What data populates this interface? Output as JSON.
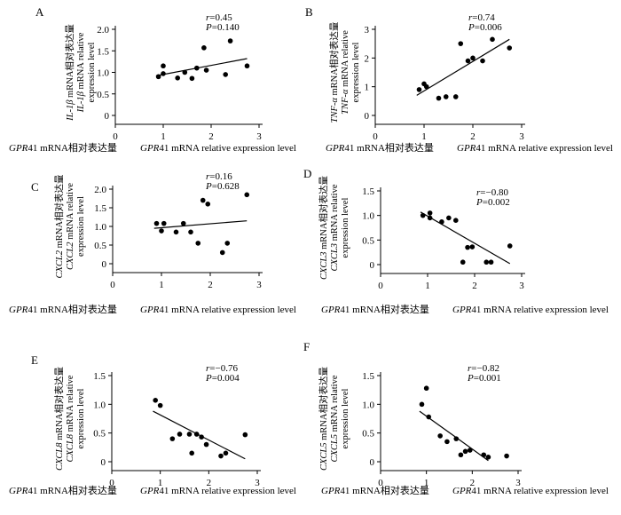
{
  "chart_data": [
    {
      "panel": "A",
      "type": "scatter",
      "ylabel": [
        "IL-1β mRNA相对表达量",
        "IL-1β mRNA relative",
        "expression level"
      ],
      "xlabel": [
        "GPR41 mRNA相对表达量",
        "GPR41 mRNA relative expression level"
      ],
      "r_label": "r=0.45",
      "p_label": "P=0.140",
      "xlim": [
        0,
        3
      ],
      "ylim": [
        0,
        2.0
      ],
      "xticks": [
        "0",
        "1",
        "2",
        "3"
      ],
      "yticks": [
        "0",
        "0.5",
        "1.0",
        "1.5",
        "2.0"
      ],
      "points": [
        {
          "x": 0.9,
          "y": 0.9
        },
        {
          "x": 1.0,
          "y": 1.15
        },
        {
          "x": 1.0,
          "y": 0.97
        },
        {
          "x": 1.3,
          "y": 0.87
        },
        {
          "x": 1.45,
          "y": 1.0
        },
        {
          "x": 1.6,
          "y": 0.86
        },
        {
          "x": 1.7,
          "y": 1.1
        },
        {
          "x": 1.85,
          "y": 1.57
        },
        {
          "x": 1.9,
          "y": 1.05
        },
        {
          "x": 2.3,
          "y": 0.95
        },
        {
          "x": 2.4,
          "y": 1.73
        },
        {
          "x": 2.75,
          "y": 1.15
        }
      ],
      "fit": [
        [
          0.85,
          0.92
        ],
        [
          2.75,
          1.32
        ]
      ]
    },
    {
      "panel": "B",
      "type": "scatter",
      "ylabel": [
        "TNF-α mRNA相对表达量",
        "TNF-α mRNA relative",
        "expression level"
      ],
      "xlabel": [
        "GPR41 mRNA相对表达量",
        "GPR41 mRNA relative expression level"
      ],
      "r_label": "r=0.74",
      "p_label": "P=0.006",
      "xlim": [
        0,
        3
      ],
      "ylim": [
        0,
        3
      ],
      "xticks": [
        "0",
        "1",
        "2",
        "3"
      ],
      "yticks": [
        "0",
        "1",
        "2",
        "3"
      ],
      "points": [
        {
          "x": 0.9,
          "y": 0.9
        },
        {
          "x": 1.0,
          "y": 1.1
        },
        {
          "x": 1.05,
          "y": 1.0
        },
        {
          "x": 1.3,
          "y": 0.6
        },
        {
          "x": 1.45,
          "y": 0.65
        },
        {
          "x": 1.65,
          "y": 0.65
        },
        {
          "x": 1.75,
          "y": 2.5
        },
        {
          "x": 1.9,
          "y": 1.9
        },
        {
          "x": 2.0,
          "y": 2.0
        },
        {
          "x": 2.2,
          "y": 1.9
        },
        {
          "x": 2.4,
          "y": 2.65
        },
        {
          "x": 2.75,
          "y": 2.35
        }
      ],
      "fit": [
        [
          0.85,
          0.7
        ],
        [
          2.75,
          2.65
        ]
      ]
    },
    {
      "panel": "C",
      "type": "scatter",
      "ylabel": [
        "CXCL2 mRNA相对表达量",
        "CXCL2 mRNA relative",
        "expression level"
      ],
      "xlabel": [
        "GPR41 mRNA相对表达量",
        "GPR41 mRNA relative expression level"
      ],
      "r_label": "r=0.16",
      "p_label": "P=0.628",
      "xlim": [
        0,
        3
      ],
      "ylim": [
        0,
        2.0
      ],
      "xticks": [
        "0",
        "1",
        "2",
        "3"
      ],
      "yticks": [
        "0",
        "0.5",
        "1.0",
        "1.5",
        "2.0"
      ],
      "points": [
        {
          "x": 0.9,
          "y": 1.08
        },
        {
          "x": 1.0,
          "y": 0.88
        },
        {
          "x": 1.05,
          "y": 1.08
        },
        {
          "x": 1.3,
          "y": 0.85
        },
        {
          "x": 1.45,
          "y": 1.08
        },
        {
          "x": 1.6,
          "y": 0.85
        },
        {
          "x": 1.75,
          "y": 0.55
        },
        {
          "x": 1.85,
          "y": 1.7
        },
        {
          "x": 1.95,
          "y": 1.6
        },
        {
          "x": 2.25,
          "y": 0.3
        },
        {
          "x": 2.35,
          "y": 0.55
        },
        {
          "x": 2.75,
          "y": 1.85
        }
      ],
      "fit": [
        [
          0.85,
          0.95
        ],
        [
          2.75,
          1.15
        ]
      ]
    },
    {
      "panel": "D",
      "type": "scatter",
      "ylabel": [
        "CXCL3 mRNA相对表达量",
        "CXCL3 mRNA relative",
        "expression level"
      ],
      "xlabel": [
        "GPR41 mRNA相对表达量",
        "GPR41 mRNA relative expression level"
      ],
      "r_label": "r=−0.80",
      "p_label": "P=0.002",
      "xlim": [
        0,
        3
      ],
      "ylim": [
        0,
        1.5
      ],
      "xticks": [
        "0",
        "1",
        "2",
        "3"
      ],
      "yticks": [
        "0",
        "0.5",
        "1.0",
        "1.5"
      ],
      "points": [
        {
          "x": 0.9,
          "y": 1.0
        },
        {
          "x": 1.05,
          "y": 1.05
        },
        {
          "x": 1.05,
          "y": 0.95
        },
        {
          "x": 1.3,
          "y": 0.87
        },
        {
          "x": 1.45,
          "y": 0.95
        },
        {
          "x": 1.6,
          "y": 0.9
        },
        {
          "x": 1.75,
          "y": 0.05
        },
        {
          "x": 1.85,
          "y": 0.35
        },
        {
          "x": 1.95,
          "y": 0.36
        },
        {
          "x": 2.25,
          "y": 0.05
        },
        {
          "x": 2.35,
          "y": 0.05
        },
        {
          "x": 2.75,
          "y": 0.38
        }
      ],
      "fit": [
        [
          0.85,
          1.07
        ],
        [
          2.75,
          0.02
        ]
      ]
    },
    {
      "panel": "E",
      "type": "scatter",
      "ylabel": [
        "CXCL8 mRNA相对表达量",
        "CXCL8 mRNA relative",
        "expression level"
      ],
      "xlabel": [
        "GPR41 mRNA相对表达量",
        "GPR41 mRNA relative expression level"
      ],
      "r_label": "r=−0.76",
      "p_label": "P=0.004",
      "xlim": [
        0,
        3
      ],
      "ylim": [
        0,
        1.5
      ],
      "xticks": [
        "0",
        "1",
        "2",
        "3"
      ],
      "yticks": [
        "0",
        "0.5",
        "1.0",
        "1.5"
      ],
      "points": [
        {
          "x": 0.9,
          "y": 1.07
        },
        {
          "x": 1.0,
          "y": 0.98
        },
        {
          "x": 1.25,
          "y": 0.4
        },
        {
          "x": 1.4,
          "y": 0.48
        },
        {
          "x": 1.6,
          "y": 0.48
        },
        {
          "x": 1.65,
          "y": 0.15
        },
        {
          "x": 1.75,
          "y": 0.48
        },
        {
          "x": 1.85,
          "y": 0.43
        },
        {
          "x": 1.95,
          "y": 0.3
        },
        {
          "x": 2.25,
          "y": 0.1
        },
        {
          "x": 2.35,
          "y": 0.15
        },
        {
          "x": 2.75,
          "y": 0.47
        }
      ],
      "fit": [
        [
          0.85,
          0.88
        ],
        [
          2.75,
          0.05
        ]
      ]
    },
    {
      "panel": "F",
      "type": "scatter",
      "ylabel": [
        "CXCL5 mRNA相对表达量",
        "CXCL5 mRNA relative",
        "expression level"
      ],
      "xlabel": [
        "GPR41 mRNA相对表达量",
        "GPR41 mRNA relative expression level"
      ],
      "r_label": "r=−0.82",
      "p_label": "P=0.001",
      "xlim": [
        0,
        3
      ],
      "ylim": [
        0,
        1.5
      ],
      "xticks": [
        "0",
        "1",
        "2",
        "3"
      ],
      "yticks": [
        "0",
        "0.5",
        "1.0",
        "1.5"
      ],
      "points": [
        {
          "x": 0.9,
          "y": 1.0
        },
        {
          "x": 1.0,
          "y": 1.28
        },
        {
          "x": 1.05,
          "y": 0.78
        },
        {
          "x": 1.3,
          "y": 0.45
        },
        {
          "x": 1.45,
          "y": 0.35
        },
        {
          "x": 1.65,
          "y": 0.4
        },
        {
          "x": 1.75,
          "y": 0.12
        },
        {
          "x": 1.85,
          "y": 0.18
        },
        {
          "x": 1.95,
          "y": 0.2
        },
        {
          "x": 2.25,
          "y": 0.12
        },
        {
          "x": 2.35,
          "y": 0.08
        },
        {
          "x": 2.75,
          "y": 0.1
        }
      ],
      "fit": [
        [
          0.85,
          0.88
        ],
        [
          2.35,
          0.02
        ]
      ]
    }
  ]
}
